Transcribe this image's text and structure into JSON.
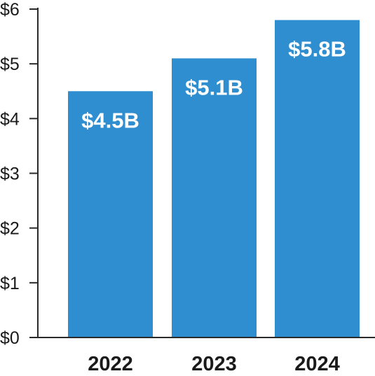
{
  "chart_data": {
    "type": "bar",
    "title": "",
    "xlabel": "",
    "ylabel": "",
    "categories": [
      "2022",
      "2023",
      "2024"
    ],
    "values": [
      4.5,
      5.1,
      5.8
    ],
    "data_labels": [
      "$4.5B",
      "$5.1B",
      "$5.8B"
    ],
    "ylim": [
      0,
      6
    ],
    "y_ticks": [
      0,
      1,
      2,
      3,
      4,
      5,
      6
    ],
    "y_tick_labels": [
      "$0",
      "$1",
      "$2",
      "$3",
      "$4",
      "$5",
      "$6"
    ],
    "grid": false,
    "legend": "none",
    "colors": {
      "bar": "#2f8ecf",
      "axis": "#2a2a2a",
      "text": "#1a1a1a",
      "data_label": "#ffffff"
    }
  }
}
